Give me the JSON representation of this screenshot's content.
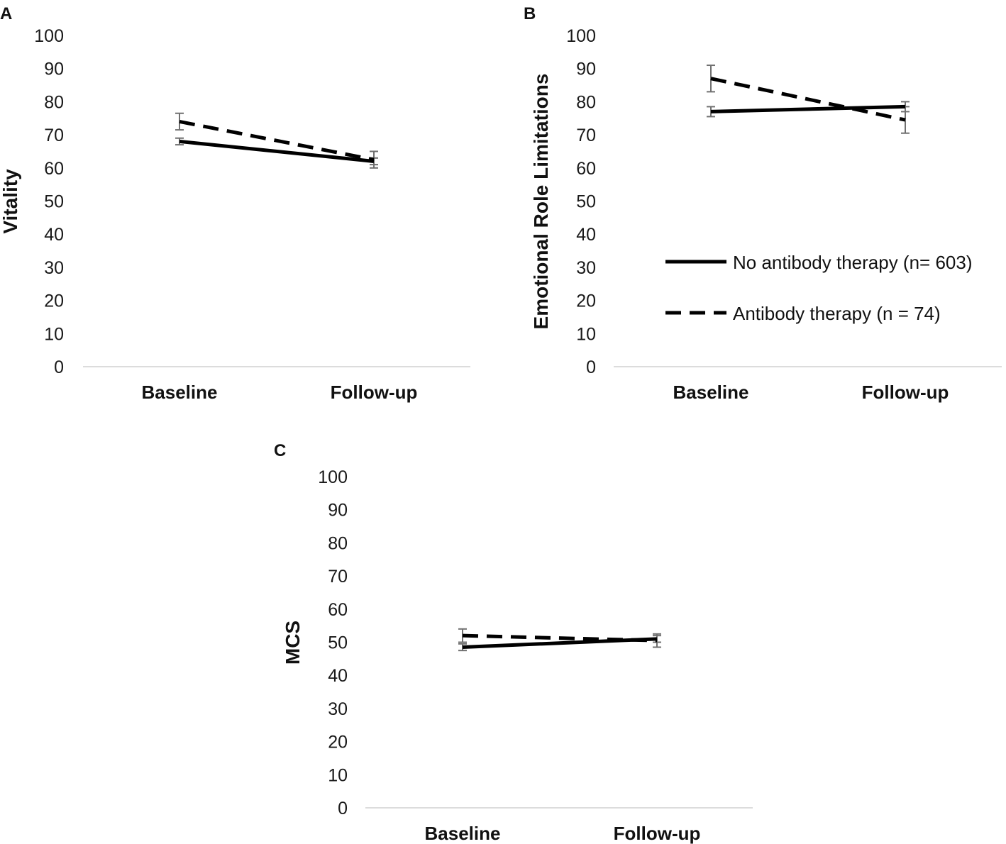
{
  "chart_data": [
    {
      "panel": "A",
      "type": "line",
      "ylabel": "Vitality",
      "xlabel": "",
      "categories": [
        "Baseline",
        "Follow-up"
      ],
      "ylim": [
        0,
        100
      ],
      "yticks": [
        0,
        10,
        20,
        30,
        40,
        50,
        60,
        70,
        80,
        90,
        100
      ],
      "series": [
        {
          "name": "No antibody therapy (n= 603)",
          "style": "solid",
          "values": [
            68,
            62
          ],
          "errors": [
            1,
            1
          ]
        },
        {
          "name": "Antibody therapy (n = 74)",
          "style": "dashed",
          "values": [
            74,
            62.5
          ],
          "errors": [
            2.5,
            2.5
          ]
        }
      ]
    },
    {
      "panel": "B",
      "type": "line",
      "ylabel": "Emotional Role Limitations",
      "xlabel": "",
      "categories": [
        "Baseline",
        "Follow-up"
      ],
      "ylim": [
        0,
        100
      ],
      "yticks": [
        0,
        10,
        20,
        30,
        40,
        50,
        60,
        70,
        80,
        90,
        100
      ],
      "legend": "right",
      "series": [
        {
          "name": "No antibody therapy (n= 603)",
          "style": "solid",
          "values": [
            77,
            78.5
          ],
          "errors": [
            1.5,
            1.5
          ]
        },
        {
          "name": "Antibody therapy (n = 74)",
          "style": "dashed",
          "values": [
            87,
            74.5
          ],
          "errors": [
            4,
            4
          ]
        }
      ]
    },
    {
      "panel": "C",
      "type": "line",
      "ylabel": "MCS",
      "xlabel": "",
      "categories": [
        "Baseline",
        "Follow-up"
      ],
      "ylim": [
        0,
        100
      ],
      "yticks": [
        0,
        10,
        20,
        30,
        40,
        50,
        60,
        70,
        80,
        90,
        100
      ],
      "series": [
        {
          "name": "No antibody therapy (n= 603)",
          "style": "solid",
          "values": [
            48.5,
            51
          ],
          "errors": [
            1,
            1
          ]
        },
        {
          "name": "Antibody therapy (n = 74)",
          "style": "dashed",
          "values": [
            52,
            50.5
          ],
          "errors": [
            2,
            2
          ]
        }
      ]
    }
  ],
  "colors": {
    "line": "#000000",
    "errorbar": "#707070",
    "axis": "#d0d0d0"
  }
}
